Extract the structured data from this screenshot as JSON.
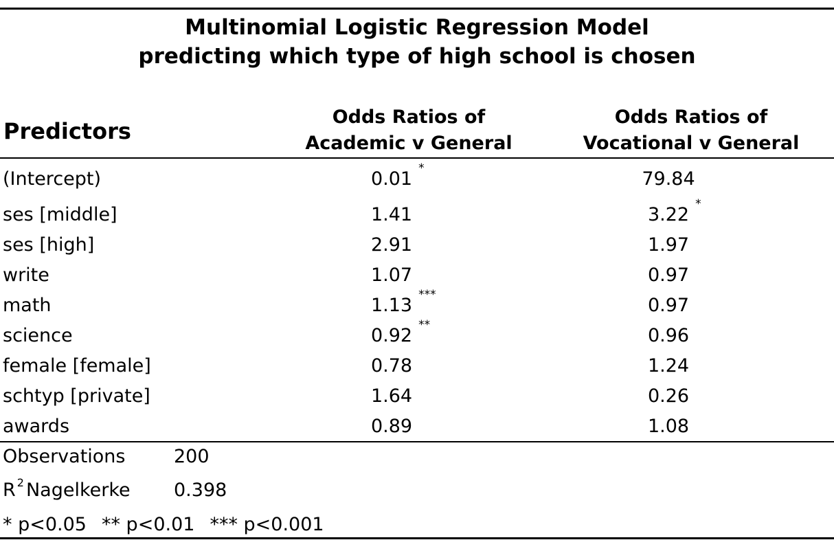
{
  "title": {
    "line1": "Multinomial Logistic Regression Model",
    "line2": "predicting which type of high school is chosen"
  },
  "header": {
    "predictors": "Predictors",
    "col1_line1": "Odds Ratios of",
    "col1_line2": "Academic v General",
    "col2_line1": "Odds Ratios of",
    "col2_line2": "Vocational v General"
  },
  "rows": [
    {
      "label": "(Intercept)",
      "c1": "0.01",
      "c1_sig": "*",
      "c2": "79.84",
      "c2_sig": ""
    },
    {
      "label": "ses [middle]",
      "c1": "1.41",
      "c1_sig": "",
      "c2": "3.22",
      "c2_sig": "*"
    },
    {
      "label": "ses [high]",
      "c1": "2.91",
      "c1_sig": "",
      "c2": "1.97",
      "c2_sig": ""
    },
    {
      "label": "write",
      "c1": "1.07",
      "c1_sig": "",
      "c2": "0.97",
      "c2_sig": ""
    },
    {
      "label": "math",
      "c1": "1.13",
      "c1_sig": "***",
      "c2": "0.97",
      "c2_sig": ""
    },
    {
      "label": "science",
      "c1": "0.92",
      "c1_sig": "**",
      "c2": "0.96",
      "c2_sig": ""
    },
    {
      "label": "female [female]",
      "c1": "0.78",
      "c1_sig": "",
      "c2": "1.24",
      "c2_sig": ""
    },
    {
      "label": "schtyp [private]",
      "c1": "1.64",
      "c1_sig": "",
      "c2": "0.26",
      "c2_sig": ""
    },
    {
      "label": "awards",
      "c1": "0.89",
      "c1_sig": "",
      "c2": "1.08",
      "c2_sig": ""
    }
  ],
  "stats": {
    "observations_label": "Observations",
    "observations_value": "200",
    "r2_label_r": "R",
    "r2_label_sup": "2",
    "r2_label_rest": "Nagelkerke",
    "r2_value": "0.398"
  },
  "footnote": {
    "p1": "* p<0.05",
    "p2": "** p<0.01",
    "p3": "*** p<0.001"
  }
}
